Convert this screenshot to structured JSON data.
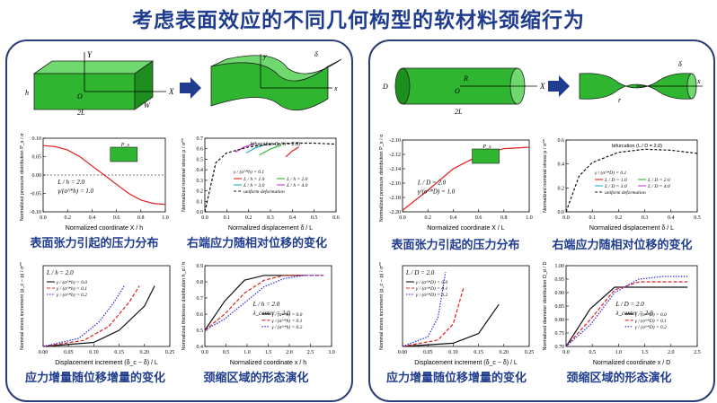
{
  "title": "考虑表面效应的不同几何构型的软材料颈缩行为",
  "colors": {
    "title": "#1f3c8f",
    "border": "#2c3e78",
    "green": "#2fb52f",
    "red": "#e02020",
    "blue": "#2a2ae0",
    "black": "#111111"
  },
  "left": {
    "captions": [
      "表面张力引起的压力分布",
      "右端应力随相对位移的变化",
      "应力增量随位移增量的变化",
      "颈缩区域的形态演化"
    ],
    "schematic": {
      "h": "h",
      "L": "2L",
      "W": "W",
      "X": "X",
      "Y": "Y",
      "O": "O",
      "delta": "δ",
      "x": "x",
      "y": "y"
    },
    "p_pressure": {
      "ylabel": "Normalized pressure distribution  P_s / σ^*",
      "xlabel": "Normalized coordinate  X / h",
      "ticks_x": [
        "0.0",
        "0.2",
        "0.4",
        "0.6",
        "0.8",
        "1.0"
      ],
      "ticks_y": [
        "-0.10",
        "-0.05",
        "0.00",
        "0.05",
        "0.10"
      ],
      "inset": "P_s",
      "note1": "L / h = 2.0",
      "note2": "γ/(σ^*h) = 1.0"
    },
    "p_stress": {
      "ylabel": "Normalized nominal stress  p / σ^*",
      "xlabel": "Normalized displacement  δ / L",
      "ticks_x": [
        "0.0",
        "0.1",
        "0.2",
        "0.3",
        "0.4",
        "0.5",
        "0.6"
      ],
      "ticks_y": [
        "0.0",
        "0.1",
        "0.2",
        "0.3",
        "0.4",
        "0.5",
        "0.6",
        "0.7"
      ],
      "bif": "bifurcation  (L / h = 2.0)",
      "legend_head": "γ / (σ^*h) = 0.1",
      "legend": [
        "L / h = 1.0",
        "L / h = 2.0",
        "L / h = 3.0",
        "L / h = 4.0",
        "uniform deformation"
      ]
    },
    "p_increment": {
      "ylabel": "Nominal stress increment  (p_c − p) / σ^*",
      "xlabel": "Displacement increment  (δ_c − δ) / L",
      "ticks_x": [
        "0.00",
        "0.05",
        "0.10",
        "0.15",
        "0.20",
        "0.25"
      ],
      "note": "L / h = 2.0",
      "legend": [
        "γ / (σ^*h) = 0.0",
        "γ / (σ^*h) = 0.1",
        "γ / (σ^*h) = 0.2"
      ]
    },
    "p_thickness": {
      "ylabel": "Normalized thickness distribution  h_d / h",
      "xlabel": "Normalized coordinate  x / h",
      "ticks_x": [
        "0.0",
        "0.5",
        "1.0",
        "1.5",
        "2.0",
        "2.5",
        "3.0"
      ],
      "ticks_y": [
        "0.4",
        "0.5",
        "0.6",
        "0.7",
        "0.8",
        "0.9"
      ],
      "note1": "L / h = 2.0",
      "note2": "λ_center = 2.0",
      "legend": [
        "γ / (σ^*h) = 0.0",
        "γ / (σ^*h) = 0.1",
        "γ / (σ^*h) = 0.2"
      ]
    }
  },
  "right": {
    "captions": [
      "表面张力引起的压力分布",
      "右端应力随相对位移的变化",
      "应力增量随位移增量的变化",
      "颈缩区域的形态演化"
    ],
    "schematic": {
      "D": "D",
      "L": "2L",
      "X": "X",
      "O": "O",
      "R": "R",
      "delta": "δ",
      "x": "x",
      "r": "r"
    },
    "p_pressure": {
      "ylabel": "Normalized pressure distribution  P_s / σ^*",
      "xlabel": "Normalized coordinate  X / L",
      "ticks_x": [
        "0.0",
        "0.2",
        "0.4",
        "0.6",
        "0.8",
        "1.0"
      ],
      "ticks_y": [
        "-2.20",
        "-2.18",
        "-2.16",
        "-2.14",
        "-2.12",
        "-2.10"
      ],
      "inset": "P_s",
      "note1": "L / D = 2.0",
      "note2": "γ/(σ^*D) = 1.0"
    },
    "p_stress": {
      "ylabel": "Normalized nominal stress  p / σ^*",
      "xlabel": "Normalized displacement  δ / L",
      "ticks_x": [
        "0.0",
        "0.1",
        "0.2",
        "0.3",
        "0.4",
        "0.5"
      ],
      "ticks_y": [
        "0.0",
        "0.2",
        "0.4",
        "0.6"
      ],
      "bif": "bifurcation  (L / D = 2.0)",
      "legend_head": "γ / (σ^*D) = 0.1",
      "legend": [
        "L / D = 1.0",
        "L / D = 2.0",
        "L / D = 3.0",
        "L / D = 4.0",
        "uniform deformation"
      ]
    },
    "p_increment": {
      "ylabel": "Nominal stress increment  (p_c − p) / σ^*",
      "xlabel": "Displacement increment  (δ_c − δ) / L",
      "ticks_x": [
        "0.00",
        "0.05",
        "0.10",
        "0.15",
        "0.20",
        "0.25"
      ],
      "note": "L / D = 2.0",
      "legend": [
        "γ / (σ^*D) = 0.0",
        "γ / (σ^*D) = 0.1",
        "γ / (σ^*D) = 0.2"
      ]
    },
    "p_thickness": {
      "ylabel": "Normalized diameter distribution  D_d / D",
      "xlabel": "Normalized coordinate  x / D",
      "ticks_x": [
        "0.0",
        "0.5",
        "1.0",
        "1.5",
        "2.0",
        "2.5"
      ],
      "ticks_y": [
        "0.70",
        "0.75",
        "0.80",
        "0.85",
        "0.90",
        "0.95",
        "1.00"
      ],
      "note1": "L / D = 2.0",
      "note2": "λ_center = 2.0",
      "legend": [
        "γ / (σ^*D) = 0.0",
        "γ / (σ^*D) = 0.1",
        "γ / (σ^*D) = 0.2"
      ]
    }
  },
  "chart_data": [
    {
      "type": "line",
      "title": "",
      "xlabel": "Normalized coordinate X / h",
      "ylabel": "P_s / σ^*",
      "xlim": [
        0,
        1
      ],
      "ylim": [
        -0.1,
        0.1
      ],
      "series": [
        {
          "x": [
            0,
            0.1,
            0.2,
            0.3,
            0.4,
            0.5,
            0.6,
            0.7,
            0.8,
            0.9,
            1.0
          ],
          "values": [
            0.08,
            0.077,
            0.068,
            0.05,
            0.025,
            0,
            -0.025,
            -0.05,
            -0.068,
            -0.077,
            -0.08
          ]
        }
      ]
    },
    {
      "type": "line",
      "xlabel": "δ / L",
      "ylabel": "p / σ^*",
      "xlim": [
        0,
        0.6
      ],
      "ylim": [
        0,
        0.75
      ],
      "series": [
        {
          "name": "L / h = 1.0",
          "x": [
            0.37,
            0.4,
            0.43
          ],
          "values": [
            0.56,
            0.62,
            0.66
          ]
        },
        {
          "name": "L / h = 2.0",
          "x": [
            0.25,
            0.3,
            0.35
          ],
          "values": [
            0.58,
            0.64,
            0.68
          ]
        },
        {
          "name": "L / h = 3.0",
          "x": [
            0.19,
            0.23,
            0.27
          ],
          "values": [
            0.6,
            0.65,
            0.68
          ]
        },
        {
          "name": "L / h = 4.0",
          "x": [
            0.14,
            0.18,
            0.22
          ],
          "values": [
            0.61,
            0.66,
            0.69
          ]
        },
        {
          "name": "uniform deformation",
          "x": [
            0,
            0.05,
            0.1,
            0.2,
            0.3,
            0.4,
            0.5,
            0.6
          ],
          "values": [
            0,
            0.5,
            0.6,
            0.66,
            0.69,
            0.7,
            0.7,
            0.69
          ]
        }
      ]
    },
    {
      "type": "line",
      "xlabel": "(δ_c − δ) / L",
      "ylabel": "(p_c − p) / σ^*",
      "xlim": [
        0,
        0.25
      ],
      "ylim": [
        0,
        0.2
      ],
      "series": [
        {
          "name": "γ / (σ^*h) = 0.0",
          "x": [
            0,
            0.1,
            0.15,
            0.2,
            0.22
          ],
          "values": [
            0,
            0.01,
            0.04,
            0.1,
            0.15
          ]
        },
        {
          "name": "γ / (σ^*h) = 0.1",
          "x": [
            0,
            0.08,
            0.13,
            0.17,
            0.19
          ],
          "values": [
            0,
            0.015,
            0.05,
            0.11,
            0.15
          ]
        },
        {
          "name": "γ / (σ^*h) = 0.2",
          "x": [
            0,
            0.07,
            0.11,
            0.14,
            0.16
          ],
          "values": [
            0,
            0.02,
            0.06,
            0.11,
            0.15
          ]
        }
      ]
    },
    {
      "type": "line",
      "xlabel": "x / h",
      "ylabel": "h_d / h",
      "xlim": [
        0,
        3.2
      ],
      "ylim": [
        0.4,
        0.9
      ],
      "series": [
        {
          "name": "γ / (σ^*h) = 0.0",
          "x": [
            0,
            0.5,
            1,
            1.5,
            2,
            2.5
          ],
          "values": [
            0.5,
            0.68,
            0.81,
            0.84,
            0.84,
            0.84
          ]
        },
        {
          "name": "γ / (σ^*h) = 0.1",
          "x": [
            0,
            0.5,
            1,
            1.5,
            2,
            2.5,
            3
          ],
          "values": [
            0.5,
            0.6,
            0.73,
            0.81,
            0.84,
            0.84,
            0.84
          ]
        },
        {
          "name": "γ / (σ^*h) = 0.2",
          "x": [
            0,
            0.5,
            1,
            1.5,
            2,
            2.5,
            3
          ],
          "values": [
            0.5,
            0.57,
            0.67,
            0.77,
            0.82,
            0.84,
            0.84
          ]
        }
      ]
    },
    {
      "type": "line",
      "xlabel": "X / L",
      "ylabel": "P_s / σ^*",
      "xlim": [
        0,
        1
      ],
      "ylim": [
        -2.2,
        -2.1
      ],
      "series": [
        {
          "x": [
            0,
            0.2,
            0.4,
            0.6,
            0.8,
            1.0
          ],
          "values": [
            -2.198,
            -2.17,
            -2.14,
            -2.122,
            -2.112,
            -2.11
          ]
        }
      ]
    },
    {
      "type": "line",
      "xlabel": "δ / L",
      "ylabel": "p / σ^*",
      "xlim": [
        0,
        0.5
      ],
      "ylim": [
        0,
        0.7
      ],
      "series": [
        {
          "name": "uniform deformation",
          "x": [
            0,
            0.05,
            0.1,
            0.2,
            0.3,
            0.4,
            0.5
          ],
          "values": [
            0,
            0.35,
            0.48,
            0.58,
            0.61,
            0.6,
            0.57
          ]
        }
      ]
    },
    {
      "type": "line",
      "xlabel": "(δ_c − δ) / L",
      "ylabel": "(p_c − p) / σ^*",
      "xlim": [
        0,
        0.25
      ],
      "ylim": [
        0,
        0.25
      ],
      "series": [
        {
          "name": "γ / (σ^*D) = 0.0",
          "x": [
            0,
            0.1,
            0.15,
            0.19
          ],
          "values": [
            0,
            0.01,
            0.04,
            0.13
          ]
        },
        {
          "name": "γ / (σ^*D) = 0.1",
          "x": [
            0,
            0.07,
            0.1,
            0.12
          ],
          "values": [
            0,
            0.02,
            0.07,
            0.18
          ]
        },
        {
          "name": "γ / (σ^*D) = 0.2",
          "x": [
            0,
            0.05,
            0.07,
            0.085
          ],
          "values": [
            0,
            0.03,
            0.09,
            0.23
          ]
        }
      ]
    },
    {
      "type": "line",
      "xlabel": "x / D",
      "ylabel": "D_d / D",
      "xlim": [
        0,
        2.7
      ],
      "ylim": [
        0.7,
        1.0
      ],
      "series": [
        {
          "name": "γ / (σ^*D) = 0.0",
          "x": [
            0,
            0.5,
            1,
            1.5,
            2,
            2.5
          ],
          "values": [
            0.7,
            0.84,
            0.92,
            0.92,
            0.92,
            0.92
          ]
        },
        {
          "name": "γ / (σ^*D) = 0.1",
          "x": [
            0,
            0.5,
            1,
            1.5,
            2,
            2.5
          ],
          "values": [
            0.7,
            0.8,
            0.91,
            0.94,
            0.94,
            0.94
          ]
        },
        {
          "name": "γ / (σ^*D) = 0.2",
          "x": [
            0,
            0.5,
            1,
            1.5,
            2,
            2.5
          ],
          "values": [
            0.7,
            0.78,
            0.9,
            0.95,
            0.96,
            0.96
          ]
        }
      ]
    }
  ]
}
